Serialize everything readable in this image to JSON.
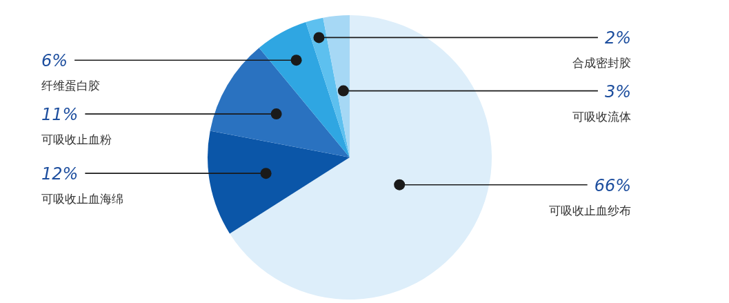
{
  "chart_data": {
    "type": "pie",
    "categories": [
      "可吸收止血纱布",
      "可吸收止血海绵",
      "可吸收止血粉",
      "纤维蛋白胶",
      "合成密封胶",
      "可吸收流体"
    ],
    "values": [
      66,
      12,
      11,
      6,
      2,
      3
    ],
    "value_labels": [
      "66%",
      "12%",
      "11%",
      "6%",
      "2%",
      "3%"
    ],
    "colors": [
      "#ddeefa",
      "#0b56a8",
      "#2a72c0",
      "#2fa6e2",
      "#5dc0ef",
      "#a6d8f5"
    ],
    "legend": false
  }
}
